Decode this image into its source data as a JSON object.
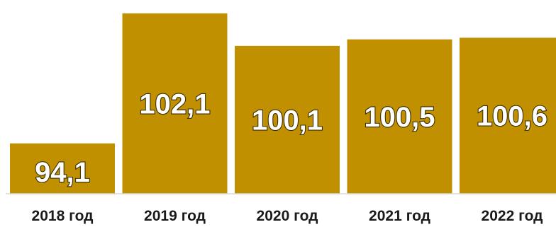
{
  "chart_data": {
    "type": "bar",
    "categories": [
      "2018 год",
      "2019 год",
      "2020 год",
      "2021 год",
      "2022 год"
    ],
    "values": [
      94.1,
      102.1,
      100.1,
      100.5,
      100.6
    ],
    "value_labels": [
      "94,1",
      "102,1",
      "100,1",
      "100,5",
      "100,6"
    ],
    "title": "",
    "xlabel": "",
    "ylabel": "",
    "ylim": [
      91.0,
      102.4
    ],
    "grid": false,
    "legend": "none",
    "bar_color": "#C09000",
    "baseline_color": "#d9d9d9",
    "label_color": "#ffffff"
  }
}
